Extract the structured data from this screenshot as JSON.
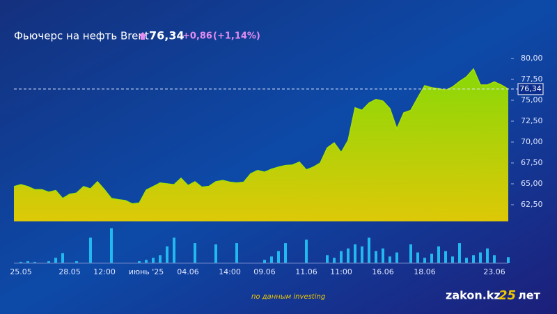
{
  "chart_data": {
    "type": "area",
    "title": "Фьючерс на нефть Brent",
    "change": "+0,86",
    "change_percent": "(+1,14%)",
    "current": {
      "value": 76.34,
      "label": "76,34"
    },
    "source": "по данным investing",
    "logo": "zakon.kz",
    "logo_years": "25",
    "logo_suffix": "лет",
    "categories": [
      null,
      "25.05",
      null,
      null,
      null,
      null,
      null,
      null,
      "28.05",
      null,
      null,
      null,
      null,
      "12:00",
      null,
      null,
      null,
      null,
      null,
      "июнь '25",
      null,
      null,
      null,
      null,
      null,
      "04.06",
      null,
      null,
      null,
      null,
      null,
      "14:00",
      null,
      null,
      null,
      null,
      "09.06",
      null,
      null,
      null,
      null,
      null,
      "11.06",
      null,
      null,
      null,
      null,
      "11:00",
      null,
      null,
      null,
      null,
      null,
      "16.06",
      null,
      null,
      null,
      null,
      null,
      "18.06",
      null,
      null,
      null,
      null,
      null,
      null,
      null,
      null,
      null,
      "23.06",
      null,
      null
    ],
    "values": [
      64.67,
      64.9,
      64.67,
      64.3,
      64.3,
      64.0,
      64.2,
      63.25,
      63.75,
      63.9,
      64.67,
      64.4,
      65.25,
      64.3,
      63.25,
      63.1,
      63.0,
      62.6,
      62.7,
      64.25,
      64.67,
      65.1,
      65.0,
      64.9,
      65.67,
      64.8,
      65.25,
      64.6,
      64.7,
      65.25,
      65.4,
      65.2,
      65.1,
      65.2,
      66.2,
      66.6,
      66.4,
      66.75,
      67.0,
      67.2,
      67.25,
      67.6,
      66.67,
      67.0,
      67.5,
      69.3,
      69.9,
      68.75,
      70.2,
      74.1,
      73.8,
      74.67,
      75.1,
      74.9,
      74.0,
      71.6,
      73.5,
      73.8,
      75.3,
      76.75,
      76.5,
      76.4,
      76.2,
      76.6,
      77.25,
      77.8,
      78.75,
      76.83,
      76.83,
      77.2,
      76.83,
      76.34
    ],
    "color": "#a8e000",
    "ylim": [
      60.5,
      81
    ],
    "yticks": [
      {
        "value": 62.5,
        "label": "62,50"
      },
      {
        "value": 65,
        "label": "65,00"
      },
      {
        "value": 67.5,
        "label": "67,50"
      },
      {
        "value": 70,
        "label": "70,00"
      },
      {
        "value": 72.5,
        "label": "72,50"
      },
      {
        "value": 75,
        "label": "75,00"
      },
      {
        "value": 77.5,
        "label": "77,50"
      },
      {
        "value": 80,
        "label": "80,00"
      }
    ],
    "grid": false,
    "volume": {
      "values": [
        0,
        2,
        3,
        2,
        0,
        3,
        8,
        15,
        0,
        3,
        0,
        38,
        0,
        0,
        52,
        0,
        0,
        0,
        3,
        5,
        8,
        12,
        25,
        38,
        0,
        0,
        30,
        0,
        0,
        28,
        0,
        0,
        30,
        0,
        0,
        0,
        5,
        10,
        18,
        30,
        0,
        0,
        35,
        0,
        0,
        12,
        8,
        18,
        22,
        28,
        25,
        38,
        18,
        22,
        10,
        16,
        0,
        28,
        16,
        8,
        14,
        25,
        18,
        10,
        30,
        8,
        12,
        16,
        22,
        12,
        0,
        9
      ],
      "ylim": [
        0,
        55
      ],
      "color": "#22b8f0"
    }
  }
}
